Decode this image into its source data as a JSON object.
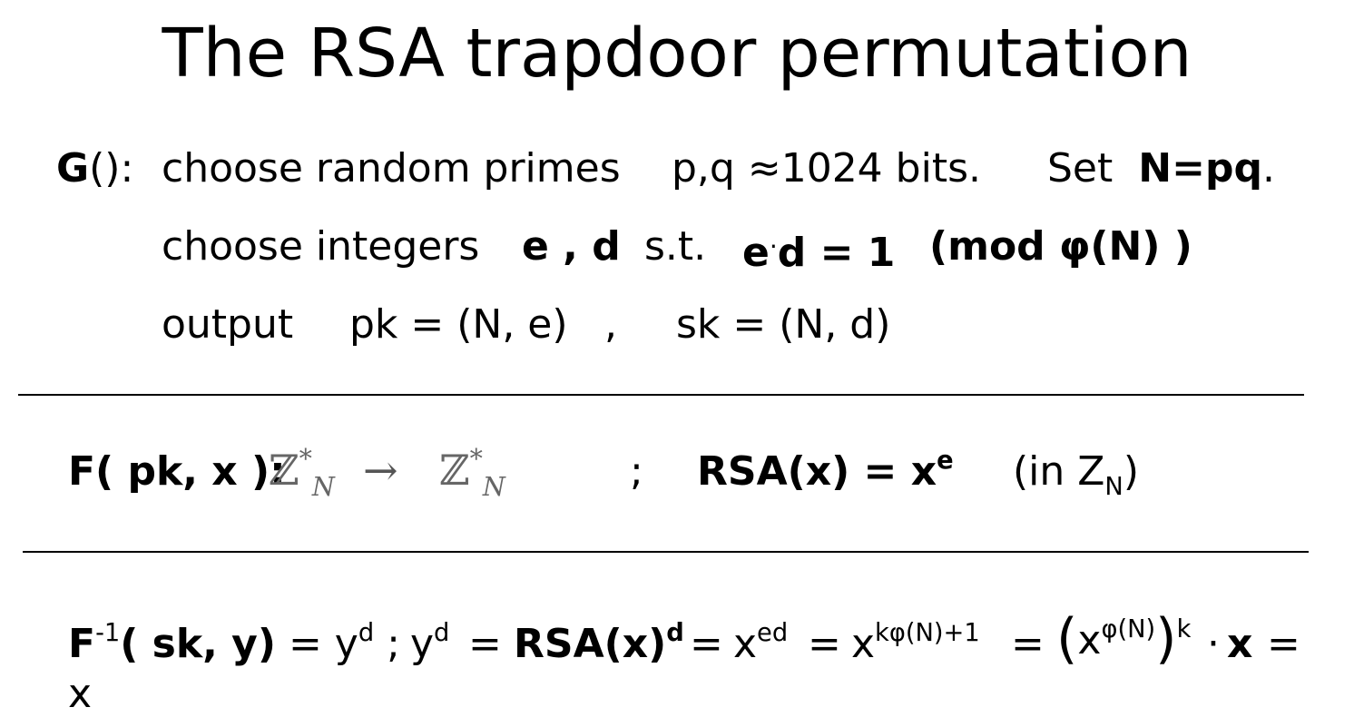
{
  "title": "The RSA trapdoor permutation",
  "gen": {
    "label_bold": "G",
    "label_rest": "():",
    "line1_text": "choose random primes",
    "line1_pq": "p,q ≈1024 bits.",
    "line1_set": "Set",
    "line1_n": "N=pq",
    "line1_dot": ".",
    "line2_text": "choose integers",
    "line2_ed": "e , d",
    "line2_st": "s.t.",
    "line2_cond_e": "e",
    "line2_cond_dot": "·",
    "line2_cond_rest": "d = 1",
    "line2_mod": "(mod φ(N) )",
    "line3_text": "output",
    "line3_pk": "pk = (N, e)",
    "line3_comma": ",",
    "line3_sk": "sk = (N, d)"
  },
  "f": {
    "label": "F( pk, x ):",
    "domain_set": "ℤ",
    "domain_sup": "*",
    "domain_sub": "N",
    "arrow": "→",
    "semicolon": ";",
    "rsa": "RSA(x) = x",
    "rsa_sup": "e",
    "in_text": "(in  Z",
    "in_sub": "N",
    "in_close": ")"
  },
  "finv": {
    "label_f": "F",
    "label_sup": "-1",
    "label_rest": "( sk, y)",
    "eq1": " = y",
    "eq1_sup": "d",
    "eq1_semi": " ;",
    "y": "y",
    "y_sup": "d",
    "eq2": "=",
    "rsa": "RSA(x)",
    "rsa_sup": "d",
    "eq3": "=",
    "x1": "x",
    "x1_sup": "ed",
    "eq4": "=",
    "x2": "x",
    "x2_sup": "kφ(N)+1",
    "eq5": "=",
    "lparen": "(",
    "x3": "x",
    "x3_sup": "φ(N)",
    "rparen": ")",
    "k_sup": "k",
    "dot": "·",
    "xbold": "x",
    "eq6": "=",
    "final": "x"
  }
}
